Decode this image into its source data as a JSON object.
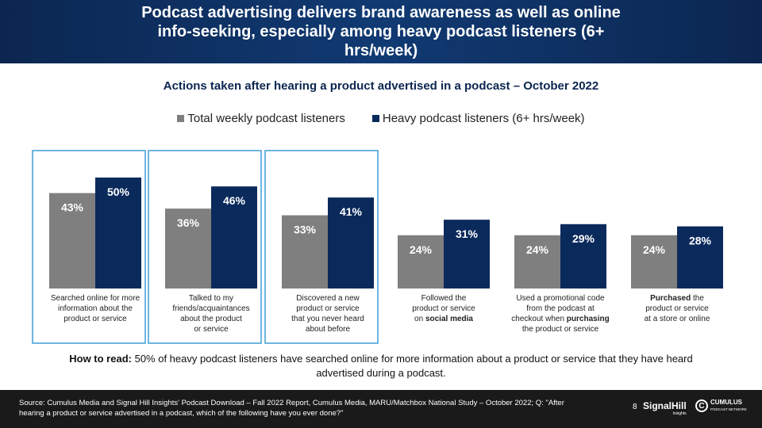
{
  "title": "Podcast advertising delivers brand awareness as well as online info-seeking, especially among heavy podcast listeners (6+ hrs/week)",
  "colors": {
    "header_bg": "#0b2650",
    "total": "#7f7f7f",
    "heavy": "#0b2a5c",
    "highlight": "#4aa3d8"
  },
  "chart_data": {
    "type": "bar",
    "title": "Actions taken after hearing a product advertised in a podcast – October 2022",
    "categories": [
      "Searched online for more information about the product or service",
      "Talked to my friends/acquaintances about the product or service",
      "Discovered a new product or service that you never heard about before",
      "Followed the product or service on social media",
      "Used a promotional code from the podcast at checkout when purchasing the product or service",
      "Purchased the product or service at a store or online"
    ],
    "category_lines": [
      [
        "Searched online for more",
        "information about the",
        "product or service"
      ],
      [
        "Talked to my",
        "friends/acquaintances",
        "about the product",
        "or service"
      ],
      [
        "Discovered a new",
        "product or service",
        "that you never heard",
        "about before"
      ],
      [
        "Followed the",
        "product or service",
        "on social media"
      ],
      [
        "Used a promotional code",
        "from the podcast at",
        "checkout when purchasing",
        "the product or service"
      ],
      [
        "Purchased the",
        "product or service",
        "at a store or online"
      ]
    ],
    "series": [
      {
        "name": "Total weekly podcast listeners",
        "values": [
          43,
          36,
          33,
          24,
          24,
          24
        ],
        "labels": [
          "43%",
          "36%",
          "33%",
          "24%",
          "24%",
          "24%"
        ]
      },
      {
        "name": "Heavy podcast listeners (6+ hrs/week)",
        "values": [
          50,
          46,
          41,
          31,
          29,
          28
        ],
        "labels": [
          "50%",
          "46%",
          "41%",
          "31%",
          "29%",
          "28%"
        ]
      }
    ],
    "highlighted_categories": [
      0,
      1,
      2
    ],
    "ylim": [
      0,
      100
    ],
    "legend": "top-center"
  },
  "how_to_read": {
    "lead": "How to read:",
    "text": " 50% of heavy podcast listeners have searched online for more information about a product or service that they have heard advertised during a podcast."
  },
  "footer": {
    "source": "Source: Cumulus Media and Signal Hill Insights' Podcast Download – Fall 2022 Report, Cumulus Media, MARU/Matchbox National Study – October 2022; Q: \"After hearing a product or service advertised in a podcast, which of the following have you ever done?\"",
    "page_number": "8",
    "logo_signalhill": "SignalHill",
    "logo_signalhill_sub": "Insights",
    "logo_cumulus": "CUMULUS",
    "logo_cumulus_sub": "PODCAST NETWORK"
  }
}
